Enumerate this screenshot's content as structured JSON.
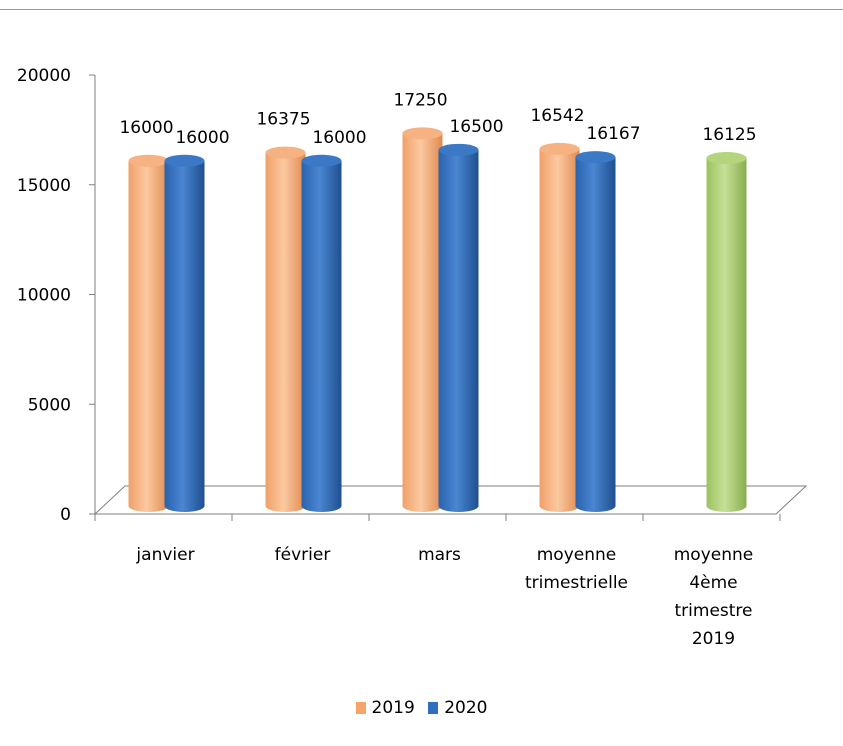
{
  "chart_data": {
    "type": "bar",
    "categories": [
      "janvier",
      "février",
      "mars",
      "moyenne trimestrielle",
      "moyenne 4ème trimestre 2019"
    ],
    "category_lines": [
      [
        "janvier"
      ],
      [
        "février"
      ],
      [
        "mars"
      ],
      [
        "moyenne",
        "trimestrielle"
      ],
      [
        "moyenne",
        "4ème",
        "trimestre",
        "2019"
      ]
    ],
    "series": [
      {
        "name": "2019",
        "values": [
          16000,
          16375,
          17250,
          16542,
          null
        ],
        "color": "#f5a46a"
      },
      {
        "name": "2020",
        "values": [
          16000,
          16000,
          16500,
          16167,
          null
        ],
        "color": "#2e6fc0"
      },
      {
        "name": "",
        "values": [
          null,
          null,
          null,
          null,
          16125
        ],
        "color": "#a6c96a"
      }
    ],
    "data_labels": [
      [
        "16000",
        "16375",
        "17250",
        "16542",
        null
      ],
      [
        "16000",
        "16000",
        "16500",
        "16167",
        null
      ],
      [
        null,
        null,
        null,
        null,
        "16125"
      ]
    ],
    "yticks": [
      "0",
      "5000",
      "10000",
      "15000",
      "20000"
    ],
    "ylim": [
      0,
      20000
    ],
    "grid": false,
    "style": "3d-cylinder",
    "legend": {
      "position": "bottom",
      "entries": [
        "2019",
        "2020"
      ]
    }
  }
}
